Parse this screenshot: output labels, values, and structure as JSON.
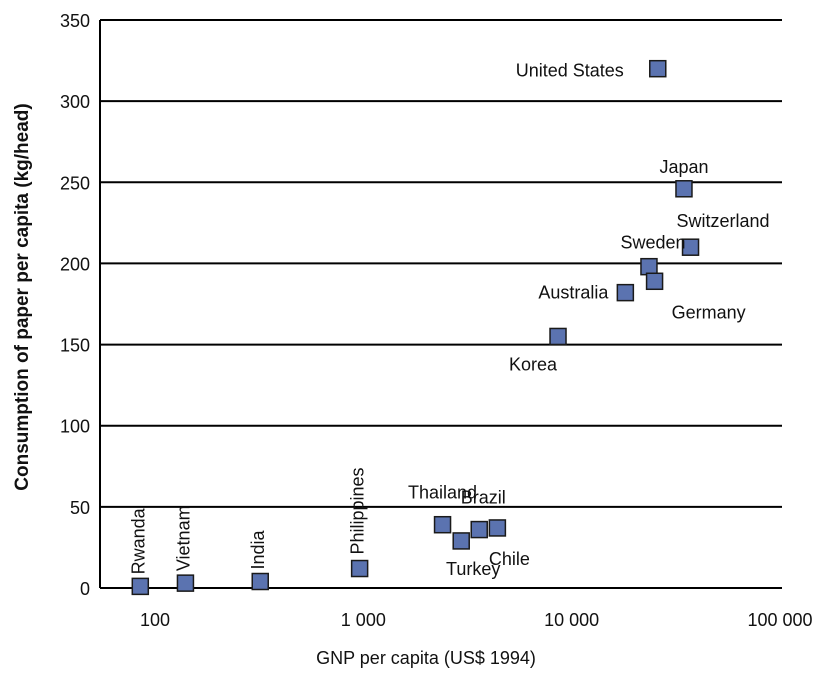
{
  "chart_data": {
    "type": "scatter",
    "xlabel": "GNP per capita (US$ 1994)",
    "ylabel": "Consumption of paper per capita (kg/head)",
    "xscale": "log",
    "xlim": [
      70,
      100000
    ],
    "ylim": [
      0,
      350
    ],
    "x_ticks": [
      {
        "value": 100,
        "label": "100"
      },
      {
        "value": 1000,
        "label": "1 000"
      },
      {
        "value": 10000,
        "label": "10 000"
      },
      {
        "value": 100000,
        "label": "100 000"
      }
    ],
    "y_ticks": [
      {
        "value": 0,
        "label": "0"
      },
      {
        "value": 50,
        "label": "50"
      },
      {
        "value": 100,
        "label": "100"
      },
      {
        "value": 150,
        "label": "150"
      },
      {
        "value": 200,
        "label": "200"
      },
      {
        "value": 250,
        "label": "250"
      },
      {
        "value": 300,
        "label": "300"
      },
      {
        "value": 350,
        "label": "350"
      }
    ],
    "grid": "horizontal",
    "marker_color": "#5b73b0",
    "marker_edge": "#1a1a1a",
    "points": [
      {
        "name": "Rwanda",
        "x": 85,
        "y": 1
      },
      {
        "name": "Vietnam",
        "x": 140,
        "y": 3
      },
      {
        "name": "India",
        "x": 320,
        "y": 4
      },
      {
        "name": "Philippines",
        "x": 960,
        "y": 12
      },
      {
        "name": "Thailand",
        "x": 2400,
        "y": 39
      },
      {
        "name": "Turkey",
        "x": 2950,
        "y": 29
      },
      {
        "name": "Brazil",
        "x": 3600,
        "y": 36
      },
      {
        "name": "Chile",
        "x": 4400,
        "y": 37
      },
      {
        "name": "Korea",
        "x": 8600,
        "y": 155
      },
      {
        "name": "Australia",
        "x": 18100,
        "y": 182
      },
      {
        "name": "Sweden",
        "x": 23500,
        "y": 198
      },
      {
        "name": "Germany",
        "x": 25000,
        "y": 189
      },
      {
        "name": "United States",
        "x": 25900,
        "y": 320
      },
      {
        "name": "Japan",
        "x": 34600,
        "y": 246
      },
      {
        "name": "Switzerland",
        "x": 37200,
        "y": 210
      }
    ]
  }
}
